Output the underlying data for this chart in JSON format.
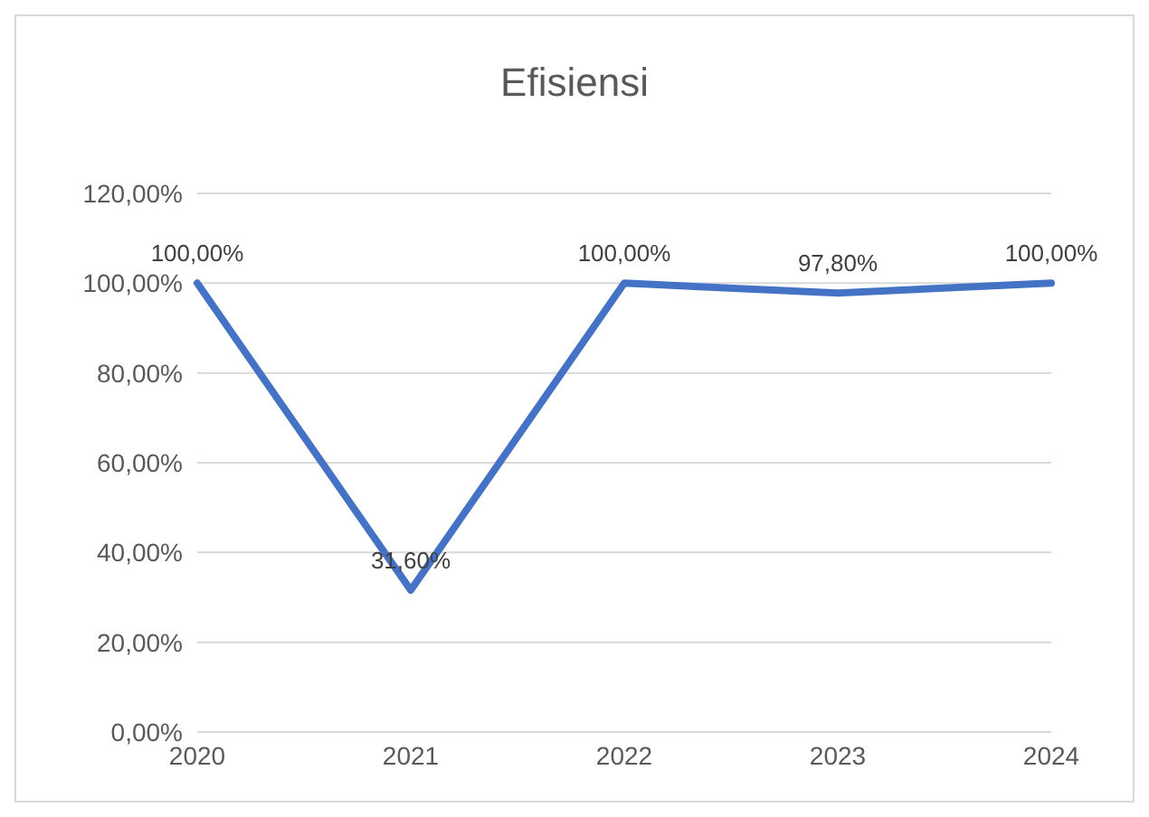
{
  "chart_data": {
    "type": "line",
    "title": "Efisiensi",
    "categories": [
      "2020",
      "2021",
      "2022",
      "2023",
      "2024"
    ],
    "series": [
      {
        "color": "#4472c4",
        "values": [
          100,
          31.6,
          100,
          97.8,
          100
        ],
        "value_labels": [
          "100,00%",
          "31,60%",
          "100,00%",
          "97,80%",
          "100,00%"
        ]
      }
    ],
    "ylim": [
      0,
      120
    ],
    "yticks": [
      {
        "value": 0,
        "label": "0,00%"
      },
      {
        "value": 20,
        "label": "20,00%"
      },
      {
        "value": 40,
        "label": "40,00%"
      },
      {
        "value": 60,
        "label": "60,00%"
      },
      {
        "value": 80,
        "label": "80,00%"
      },
      {
        "value": 100,
        "label": "100,00%"
      },
      {
        "value": 120,
        "label": "120,00%"
      }
    ],
    "grid": "y",
    "legend": false,
    "marker": "none",
    "line_style": "solid"
  }
}
